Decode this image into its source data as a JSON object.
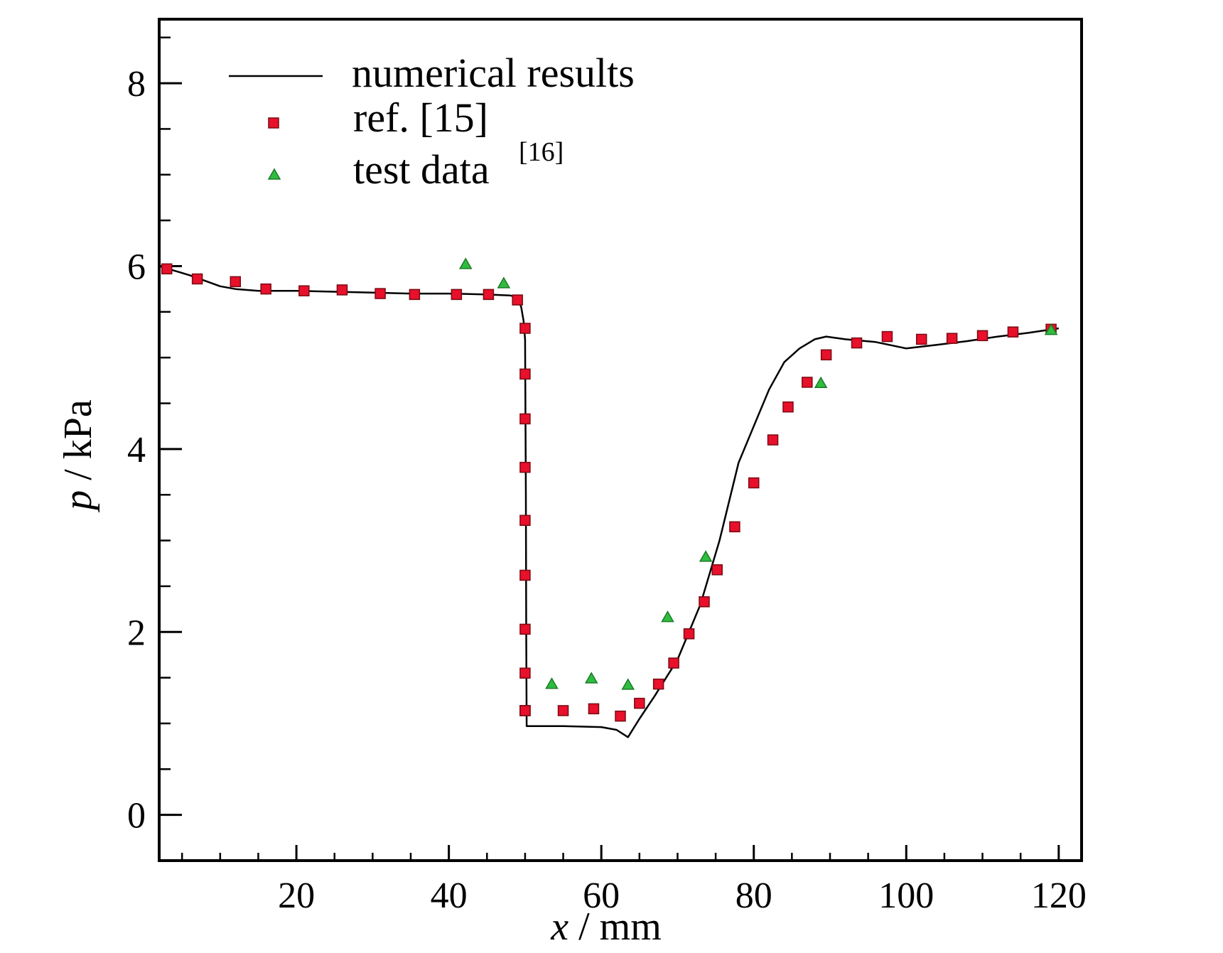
{
  "chart_data": {
    "type": "scatter",
    "title": "",
    "xlabel": {
      "var": "x",
      "unit": "mm"
    },
    "ylabel": {
      "var": "p",
      "unit": "kPa"
    },
    "xlim": [
      2,
      123
    ],
    "ylim": [
      -0.5,
      8.7
    ],
    "xticks": [
      20,
      40,
      60,
      80,
      100,
      120
    ],
    "yticks": [
      0,
      2,
      4,
      6,
      8
    ],
    "xticks_minor": [
      5,
      10,
      15,
      25,
      30,
      35,
      45,
      50,
      55,
      65,
      70,
      75,
      85,
      90,
      95,
      105,
      110,
      115
    ],
    "yticks_minor": [
      -0.5,
      0.5,
      1,
      1.5,
      2.5,
      3,
      3.5,
      4.5,
      5,
      5.5,
      6.5,
      7,
      7.5,
      8.5
    ],
    "grid": false,
    "legend_position": "top-left",
    "legend": {
      "numerical": "numerical results",
      "ref": "ref. [15]",
      "test": "test data",
      "test_sup": "[16]"
    },
    "series": [
      {
        "name": "numerical results",
        "style": "line",
        "color": "#000000",
        "x": [
          2,
          4,
          6,
          8,
          10,
          12,
          15,
          20,
          25,
          30,
          35,
          40,
          45,
          48,
          49,
          49.5,
          49.8,
          50,
          50.1,
          50.15,
          50.2,
          55,
          60,
          62,
          63.5,
          65,
          67,
          70,
          73,
          75.5,
          78,
          80,
          82,
          84,
          86,
          88,
          89.5,
          92,
          96,
          100,
          104,
          108,
          112,
          116,
          120
        ],
        "y": [
          6.0,
          5.95,
          5.9,
          5.84,
          5.78,
          5.75,
          5.73,
          5.73,
          5.72,
          5.71,
          5.7,
          5.7,
          5.69,
          5.68,
          5.66,
          5.55,
          5.4,
          5.2,
          3.5,
          2.0,
          0.97,
          0.97,
          0.96,
          0.93,
          0.85,
          1.05,
          1.3,
          1.7,
          2.3,
          3.0,
          3.85,
          4.25,
          4.65,
          4.95,
          5.1,
          5.2,
          5.23,
          5.2,
          5.17,
          5.1,
          5.14,
          5.18,
          5.23,
          5.27,
          5.32
        ]
      },
      {
        "name": "ref. [15]",
        "style": "square",
        "color": "#e8102a",
        "edge": "#7a0a14",
        "x": [
          3,
          7,
          12,
          16,
          21,
          26,
          31,
          35.5,
          41,
          45.2,
          49,
          50,
          50,
          50,
          50,
          50,
          50,
          50,
          50,
          50,
          50,
          50,
          55,
          59,
          62.5,
          65,
          67.5,
          69.5,
          71.5,
          73.5,
          75.2,
          77.5,
          80,
          82.5,
          84.5,
          87,
          89.5,
          93.5,
          97.5,
          102,
          106,
          110,
          114,
          119
        ],
        "y": [
          5.97,
          5.86,
          5.83,
          5.75,
          5.73,
          5.74,
          5.7,
          5.69,
          5.69,
          5.69,
          5.63,
          5.32,
          4.82,
          4.33,
          3.8,
          3.22,
          2.62,
          2.03,
          1.55,
          1.14,
          1.14,
          1.14,
          1.14,
          1.16,
          1.08,
          1.22,
          1.43,
          1.66,
          1.98,
          2.33,
          2.68,
          3.15,
          3.63,
          4.1,
          4.46,
          4.73,
          5.03,
          5.16,
          5.23,
          5.2,
          5.21,
          5.24,
          5.28,
          5.31
        ]
      },
      {
        "name": "test data",
        "style": "triangle",
        "color": "#2ebd3f",
        "edge": "#1c7a27",
        "x": [
          42.2,
          47.2,
          53.5,
          58.7,
          63.5,
          68.7,
          73.7,
          88.8,
          119
        ],
        "y": [
          6.02,
          5.81,
          1.43,
          1.49,
          1.42,
          2.16,
          2.82,
          4.72,
          5.3
        ]
      }
    ]
  }
}
